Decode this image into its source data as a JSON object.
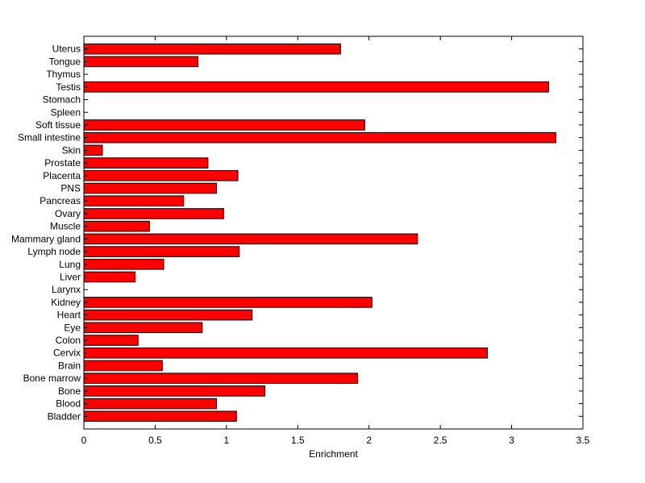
{
  "chart_data": {
    "type": "bar",
    "orientation": "horizontal",
    "title": "",
    "xlabel": "Enrichment",
    "ylabel": "",
    "xlim": [
      0,
      3.5
    ],
    "xticks": [
      "0",
      "0.5",
      "1",
      "1.5",
      "2",
      "2.5",
      "3",
      "3.5"
    ],
    "grid": false,
    "bar_color": "#ff0000",
    "edge_color": "#000000",
    "categories": [
      "Bladder",
      "Blood",
      "Bone",
      "Bone marrow",
      "Brain",
      "Cervix",
      "Colon",
      "Eye",
      "Heart",
      "Kidney",
      "Larynx",
      "Liver",
      "Lung",
      "Lymph node",
      "Mammary gland",
      "Muscle",
      "Ovary",
      "Pancreas",
      "PNS",
      "Placenta",
      "Prostate",
      "Skin",
      "Small intestine",
      "Soft tissue",
      "Spleen",
      "Stomach",
      "Testis",
      "Thymus",
      "Tongue",
      "Uterus"
    ],
    "values": [
      1.07,
      0.93,
      1.27,
      1.92,
      0.55,
      2.83,
      0.38,
      0.83,
      1.18,
      2.02,
      0,
      0.36,
      0.56,
      1.09,
      2.34,
      0.46,
      0.98,
      0.7,
      0.93,
      1.08,
      0.87,
      0.13,
      3.31,
      1.97,
      0,
      0,
      3.26,
      0,
      0.8,
      1.8
    ]
  }
}
